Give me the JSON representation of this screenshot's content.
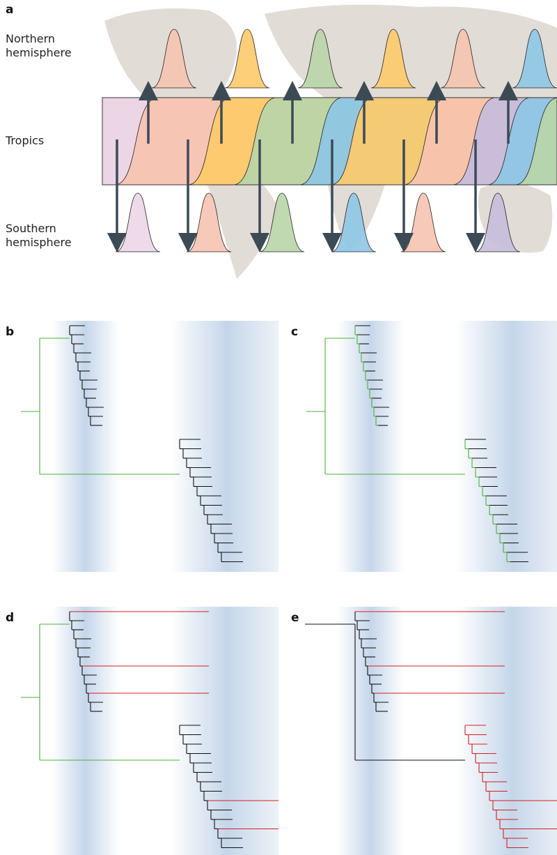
{
  "panel_a": {
    "label": "a",
    "rows": [
      "Northern hemisphere",
      "Tropics",
      "Southern hemisphere"
    ]
  },
  "panel_b": {
    "label": "b"
  },
  "panel_c": {
    "label": "c"
  },
  "panel_d": {
    "label": "d"
  },
  "panel_e": {
    "label": "e"
  }
}
